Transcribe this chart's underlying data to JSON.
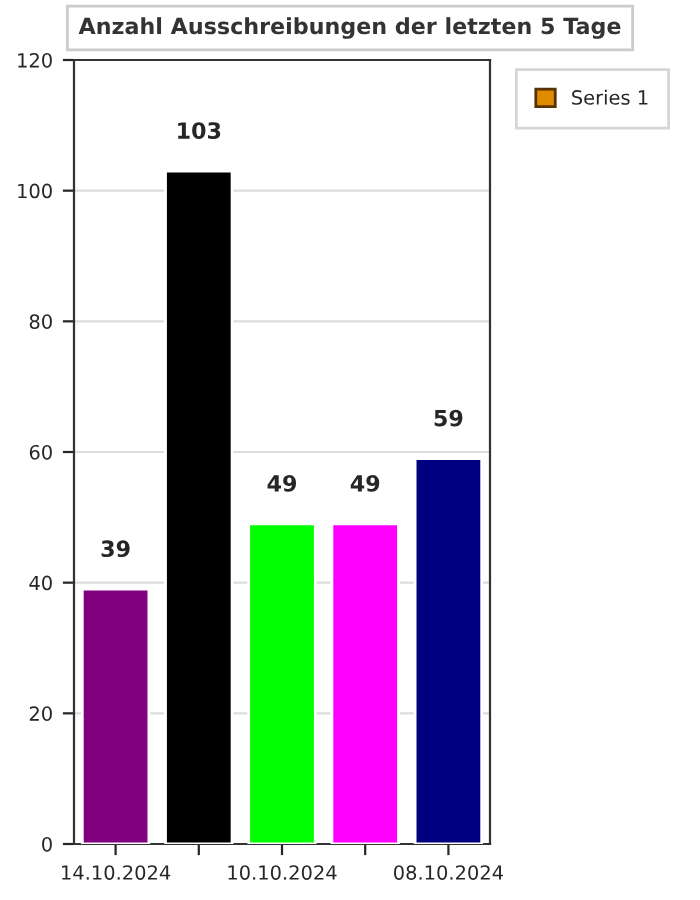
{
  "chart_data": {
    "type": "bar",
    "title": "Anzahl Ausschreibungen der letzten 5 Tage",
    "categories": [
      "14.10.2024",
      null,
      "10.10.2024",
      null,
      "08.10.2024"
    ],
    "series": [
      {
        "name": "Series 1",
        "color": "#e08a00",
        "colors": [
          "#800080",
          "#000000",
          "#00ff00",
          "#ff00ff",
          "#000080"
        ],
        "values": [
          39,
          103,
          49,
          49,
          59
        ]
      }
    ],
    "ylim": [
      0,
      120
    ],
    "yticks": [
      0,
      20,
      40,
      60,
      80,
      100,
      120
    ],
    "grid": "y",
    "legend": "top right",
    "data_labels": true
  }
}
